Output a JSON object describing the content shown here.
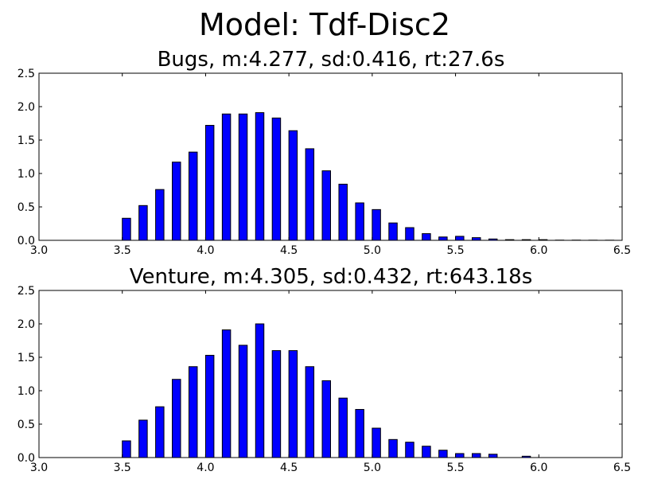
{
  "figure": {
    "title": "Model: Tdf-Disc2"
  },
  "colors": {
    "bar_fill": "#0000ff",
    "bar_edge": "#000000"
  },
  "chart_data": [
    {
      "type": "bar",
      "title": "Bugs,  m:4.277,  sd:0.416,  rt:27.6s",
      "xlabel": "",
      "ylabel": "",
      "xlim": [
        3.0,
        6.5
      ],
      "ylim": [
        0,
        2.5
      ],
      "xticks": [
        "3.0",
        "3.5",
        "4.0",
        "4.5",
        "5.0",
        "5.5",
        "6.0",
        "6.5"
      ],
      "yticks": [
        "0.0",
        "0.5",
        "1.0",
        "1.5",
        "2.0",
        "2.5"
      ],
      "grid": false,
      "bin_width": 0.05,
      "x": [
        3.5,
        3.6,
        3.7,
        3.8,
        3.9,
        4.0,
        4.1,
        4.2,
        4.3,
        4.4,
        4.5,
        4.6,
        4.7,
        4.8,
        4.9,
        5.0,
        5.1,
        5.2,
        5.3,
        5.4,
        5.5,
        5.6,
        5.7,
        5.8,
        5.9,
        6.0,
        6.1,
        6.2,
        6.3,
        6.4
      ],
      "values": [
        0.33,
        0.52,
        0.76,
        1.17,
        1.32,
        1.72,
        1.89,
        1.89,
        1.91,
        1.83,
        1.64,
        1.37,
        1.04,
        0.84,
        0.56,
        0.46,
        0.26,
        0.19,
        0.1,
        0.05,
        0.06,
        0.04,
        0.02,
        0.01,
        0.01,
        0.01,
        0.003,
        0.003,
        0.002,
        0.002
      ]
    },
    {
      "type": "bar",
      "title": "Venture,  m:4.305,  sd:0.432,  rt:643.18s",
      "xlabel": "",
      "ylabel": "",
      "xlim": [
        3.0,
        6.5
      ],
      "ylim": [
        0,
        2.5
      ],
      "xticks": [
        "3.0",
        "3.5",
        "4.0",
        "4.5",
        "5.0",
        "5.5",
        "6.0",
        "6.5"
      ],
      "yticks": [
        "0.0",
        "0.5",
        "1.0",
        "1.5",
        "2.0",
        "2.5"
      ],
      "grid": false,
      "bin_width": 0.05,
      "x": [
        3.5,
        3.6,
        3.7,
        3.8,
        3.9,
        4.0,
        4.1,
        4.2,
        4.3,
        4.4,
        4.5,
        4.6,
        4.7,
        4.8,
        4.9,
        5.0,
        5.1,
        5.2,
        5.3,
        5.4,
        5.5,
        5.6,
        5.7,
        5.8,
        5.9,
        6.0,
        6.1,
        6.2,
        6.3,
        6.4
      ],
      "values": [
        0.25,
        0.56,
        0.76,
        1.17,
        1.36,
        1.53,
        1.91,
        1.68,
        2.0,
        1.6,
        1.6,
        1.36,
        1.15,
        0.89,
        0.72,
        0.44,
        0.27,
        0.23,
        0.17,
        0.11,
        0.06,
        0.06,
        0.05,
        0.0,
        0.02,
        0.0,
        0.0,
        0.0,
        0.0,
        0.0
      ]
    }
  ]
}
